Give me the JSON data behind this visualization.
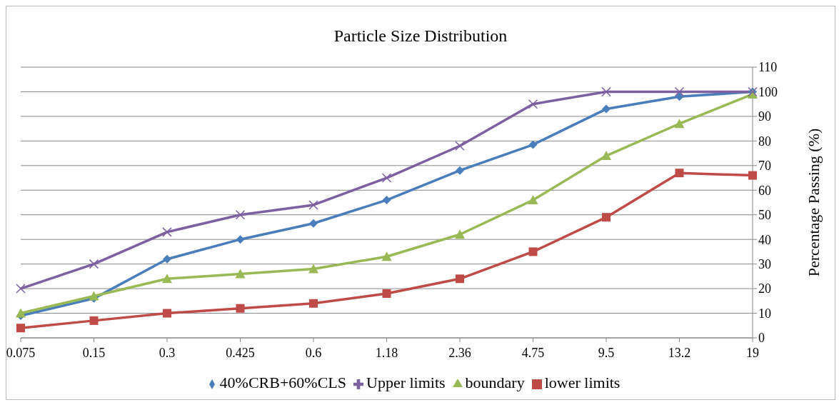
{
  "chart_data": {
    "type": "line",
    "title": "Particle Size Distribution",
    "ylabel": "Percentage Passing (%)",
    "categories": [
      "0.075",
      "0.15",
      "0.3",
      "0.425",
      "0.6",
      "1.18",
      "2.36",
      "4.75",
      "9.5",
      "13.2",
      "19"
    ],
    "series": [
      {
        "name": "40%CRB+60%CLS",
        "color": "#4a7ebb",
        "marker": "diamond",
        "values": [
          9,
          16,
          32,
          40,
          46.5,
          56,
          68,
          78.5,
          93,
          98,
          100
        ]
      },
      {
        "name": "lower limits",
        "color": "#be4b48",
        "marker": "square",
        "values": [
          4,
          7,
          10,
          12,
          14,
          18,
          24,
          35,
          49,
          67,
          66
        ]
      },
      {
        "name": "boundary",
        "color": "#98b954",
        "marker": "triangle",
        "values": [
          10,
          17,
          24,
          26,
          28,
          33,
          42,
          56,
          74,
          87,
          99
        ]
      },
      {
        "name": "Upper limits",
        "color": "#7d60a0",
        "marker": "cross",
        "values": [
          20,
          30,
          43,
          50,
          54,
          65,
          78,
          95,
          100,
          100,
          100
        ]
      }
    ],
    "ylim": [
      0,
      110
    ],
    "yticks": [
      0,
      10,
      20,
      30,
      40,
      50,
      60,
      70,
      80,
      90,
      100,
      110
    ],
    "grid": "y",
    "legend": "bottom",
    "line_style": "solid"
  }
}
